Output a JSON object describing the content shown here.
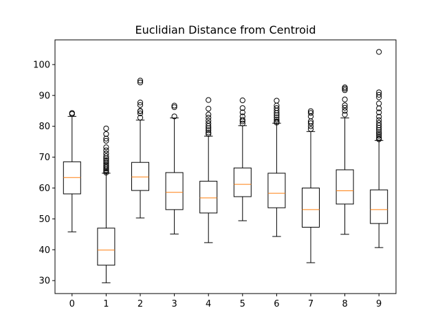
{
  "chart_data": {
    "type": "boxplot",
    "title": "Euclidian Distance from Centroid",
    "xlabel": "",
    "ylabel": "",
    "categories": [
      "0",
      "1",
      "2",
      "3",
      "4",
      "5",
      "6",
      "7",
      "8",
      "9"
    ],
    "ylim": [
      25.8,
      108
    ],
    "yticks": [
      30,
      40,
      50,
      60,
      70,
      80,
      90,
      100
    ],
    "grid": false,
    "colors": {
      "box": "#000000",
      "median": "#ff7f0e",
      "outlier": "#000000"
    },
    "boxes": [
      {
        "category": "0",
        "whisker_low": 45.8,
        "q1": 58.1,
        "median": 63.4,
        "q3": 68.5,
        "whisker_high": 83.2,
        "outliers": [
          84.0,
          84.3
        ]
      },
      {
        "category": "1",
        "whisker_low": 29.3,
        "q1": 35.0,
        "median": 39.9,
        "q3": 47.0,
        "whisker_high": 64.8,
        "outliers": [
          65.0,
          65.4,
          65.8,
          66.3,
          66.8,
          67.3,
          67.9,
          68.5,
          69.0,
          69.6,
          70.3,
          71.2,
          72.2,
          73.2,
          75.3,
          76.0,
          77.5,
          79.3
        ]
      },
      {
        "category": "2",
        "whisker_low": 50.3,
        "q1": 59.2,
        "median": 63.6,
        "q3": 68.3,
        "whisker_high": 82.0,
        "outliers": [
          82.8,
          84.2,
          84.9,
          85.0,
          86.9,
          87.7,
          94.2,
          94.8
        ]
      },
      {
        "category": "3",
        "whisker_low": 45.1,
        "q1": 53.0,
        "median": 58.6,
        "q3": 65.0,
        "whisker_high": 82.7,
        "outliers": [
          83.2,
          86.2,
          86.7
        ]
      },
      {
        "category": "4",
        "whisker_low": 42.3,
        "q1": 51.9,
        "median": 56.8,
        "q3": 62.2,
        "whisker_high": 76.8,
        "outliers": [
          77.5,
          78.0,
          78.7,
          79.4,
          80.1,
          80.9,
          81.8,
          82.8,
          83.8,
          85.7,
          88.5
        ]
      },
      {
        "category": "5",
        "whisker_low": 49.4,
        "q1": 57.2,
        "median": 61.2,
        "q3": 66.5,
        "whisker_high": 80.2,
        "outliers": [
          80.9,
          81.6,
          82.1,
          83.2,
          84.5,
          85.9,
          88.4
        ]
      },
      {
        "category": "6",
        "whisker_low": 44.3,
        "q1": 53.6,
        "median": 58.3,
        "q3": 64.8,
        "whisker_high": 81.0,
        "outliers": [
          81.2,
          81.6,
          82.2,
          82.9,
          83.6,
          84.3,
          85.1,
          85.9,
          86.7,
          88.3
        ]
      },
      {
        "category": "7",
        "whisker_low": 35.8,
        "q1": 47.3,
        "median": 53.0,
        "q3": 60.0,
        "whisker_high": 78.3,
        "outliers": [
          79.1,
          80.0,
          81.0,
          81.6,
          83.2,
          84.3,
          84.9
        ]
      },
      {
        "category": "8",
        "whisker_low": 45.0,
        "q1": 54.8,
        "median": 59.1,
        "q3": 65.9,
        "whisker_high": 82.7,
        "outliers": [
          83.8,
          85.0,
          86.0,
          86.8,
          88.7,
          91.7,
          92.2,
          92.6
        ]
      },
      {
        "category": "9",
        "whisker_low": 40.7,
        "q1": 48.5,
        "median": 53.0,
        "q3": 59.4,
        "whisker_high": 75.4,
        "outliers": [
          75.8,
          76.3,
          76.9,
          77.5,
          78.1,
          78.8,
          79.5,
          80.3,
          81.1,
          82.0,
          83.1,
          84.5,
          85.8,
          87.4,
          89.4,
          90.2,
          91.0,
          104.1
        ]
      }
    ]
  }
}
